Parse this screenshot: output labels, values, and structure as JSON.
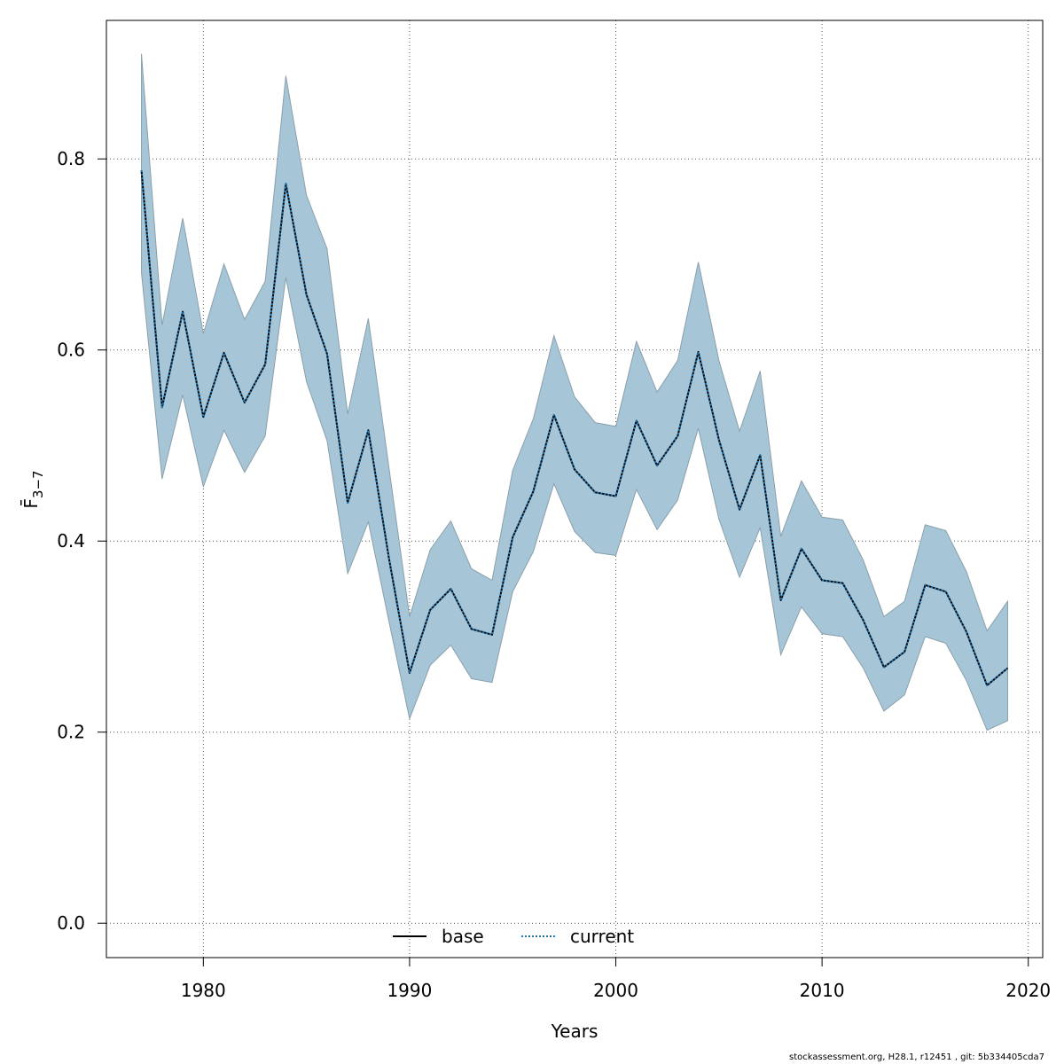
{
  "chart_data": {
    "type": "line",
    "xlabel": "Years",
    "ylabel": "F̄",
    "ylabel_sub": "3−7",
    "xlim": [
      1975.3,
      2020.7
    ],
    "ylim": [
      -0.036,
      0.945
    ],
    "x_ticks": [
      1980,
      1990,
      2000,
      2010,
      2020
    ],
    "y_ticks": [
      0.0,
      0.2,
      0.4,
      0.6,
      0.8
    ],
    "x_tick_labels": [
      "1980",
      "1990",
      "2000",
      "2010",
      "2020"
    ],
    "y_tick_labels": [
      "0.0",
      "0.2",
      "0.4",
      "0.6",
      "0.8"
    ],
    "grid": true,
    "legend_position": "bottom-center",
    "x": [
      1977,
      1978,
      1979,
      1980,
      1981,
      1982,
      1983,
      1984,
      1985,
      1986,
      1987,
      1988,
      1989,
      1990,
      1991,
      1992,
      1993,
      1994,
      1995,
      1996,
      1997,
      1998,
      1999,
      2000,
      2001,
      2002,
      2003,
      2004,
      2005,
      2006,
      2007,
      2008,
      2009,
      2010,
      2011,
      2012,
      2013,
      2014,
      2015,
      2016,
      2017,
      2018,
      2019
    ],
    "series": [
      {
        "name": "base",
        "style": "solid",
        "color": "#000000",
        "values": [
          0.788,
          0.54,
          0.64,
          0.53,
          0.597,
          0.545,
          0.585,
          0.774,
          0.658,
          0.596,
          0.44,
          0.516,
          0.382,
          0.262,
          0.328,
          0.35,
          0.308,
          0.302,
          0.404,
          0.452,
          0.532,
          0.475,
          0.451,
          0.447,
          0.526,
          0.479,
          0.51,
          0.598,
          0.506,
          0.433,
          0.49,
          0.338,
          0.392,
          0.359,
          0.356,
          0.317,
          0.268,
          0.284,
          0.354,
          0.347,
          0.305,
          0.249,
          0.267
        ]
      },
      {
        "name": "current",
        "style": "dotted",
        "color": "#1f77b4",
        "values": [
          0.788,
          0.54,
          0.64,
          0.53,
          0.597,
          0.545,
          0.585,
          0.774,
          0.658,
          0.596,
          0.44,
          0.516,
          0.382,
          0.262,
          0.328,
          0.35,
          0.308,
          0.302,
          0.404,
          0.452,
          0.532,
          0.475,
          0.451,
          0.447,
          0.526,
          0.479,
          0.51,
          0.598,
          0.506,
          0.433,
          0.49,
          0.338,
          0.392,
          0.359,
          0.356,
          0.317,
          0.268,
          0.284,
          0.354,
          0.347,
          0.305,
          0.249,
          0.267
        ]
      }
    ],
    "band": {
      "fill": "#a6c5d6",
      "stroke": "#8aa0ac",
      "upper": [
        0.91,
        0.626,
        0.738,
        0.617,
        0.69,
        0.632,
        0.672,
        0.887,
        0.762,
        0.706,
        0.533,
        0.633,
        0.477,
        0.321,
        0.391,
        0.421,
        0.371,
        0.359,
        0.474,
        0.528,
        0.615,
        0.551,
        0.524,
        0.52,
        0.609,
        0.556,
        0.589,
        0.692,
        0.589,
        0.515,
        0.578,
        0.405,
        0.463,
        0.425,
        0.422,
        0.38,
        0.321,
        0.337,
        0.417,
        0.411,
        0.368,
        0.306,
        0.337
      ],
      "lower": [
        0.681,
        0.465,
        0.553,
        0.457,
        0.516,
        0.472,
        0.51,
        0.676,
        0.567,
        0.505,
        0.366,
        0.42,
        0.316,
        0.214,
        0.27,
        0.291,
        0.256,
        0.252,
        0.347,
        0.389,
        0.46,
        0.41,
        0.388,
        0.385,
        0.454,
        0.412,
        0.443,
        0.518,
        0.423,
        0.362,
        0.414,
        0.281,
        0.331,
        0.303,
        0.3,
        0.267,
        0.222,
        0.239,
        0.3,
        0.293,
        0.254,
        0.202,
        0.212
      ]
    }
  },
  "footer": {
    "text": "stockassessment.org, H28.1, r12451 , git: 5b334405cda7"
  }
}
